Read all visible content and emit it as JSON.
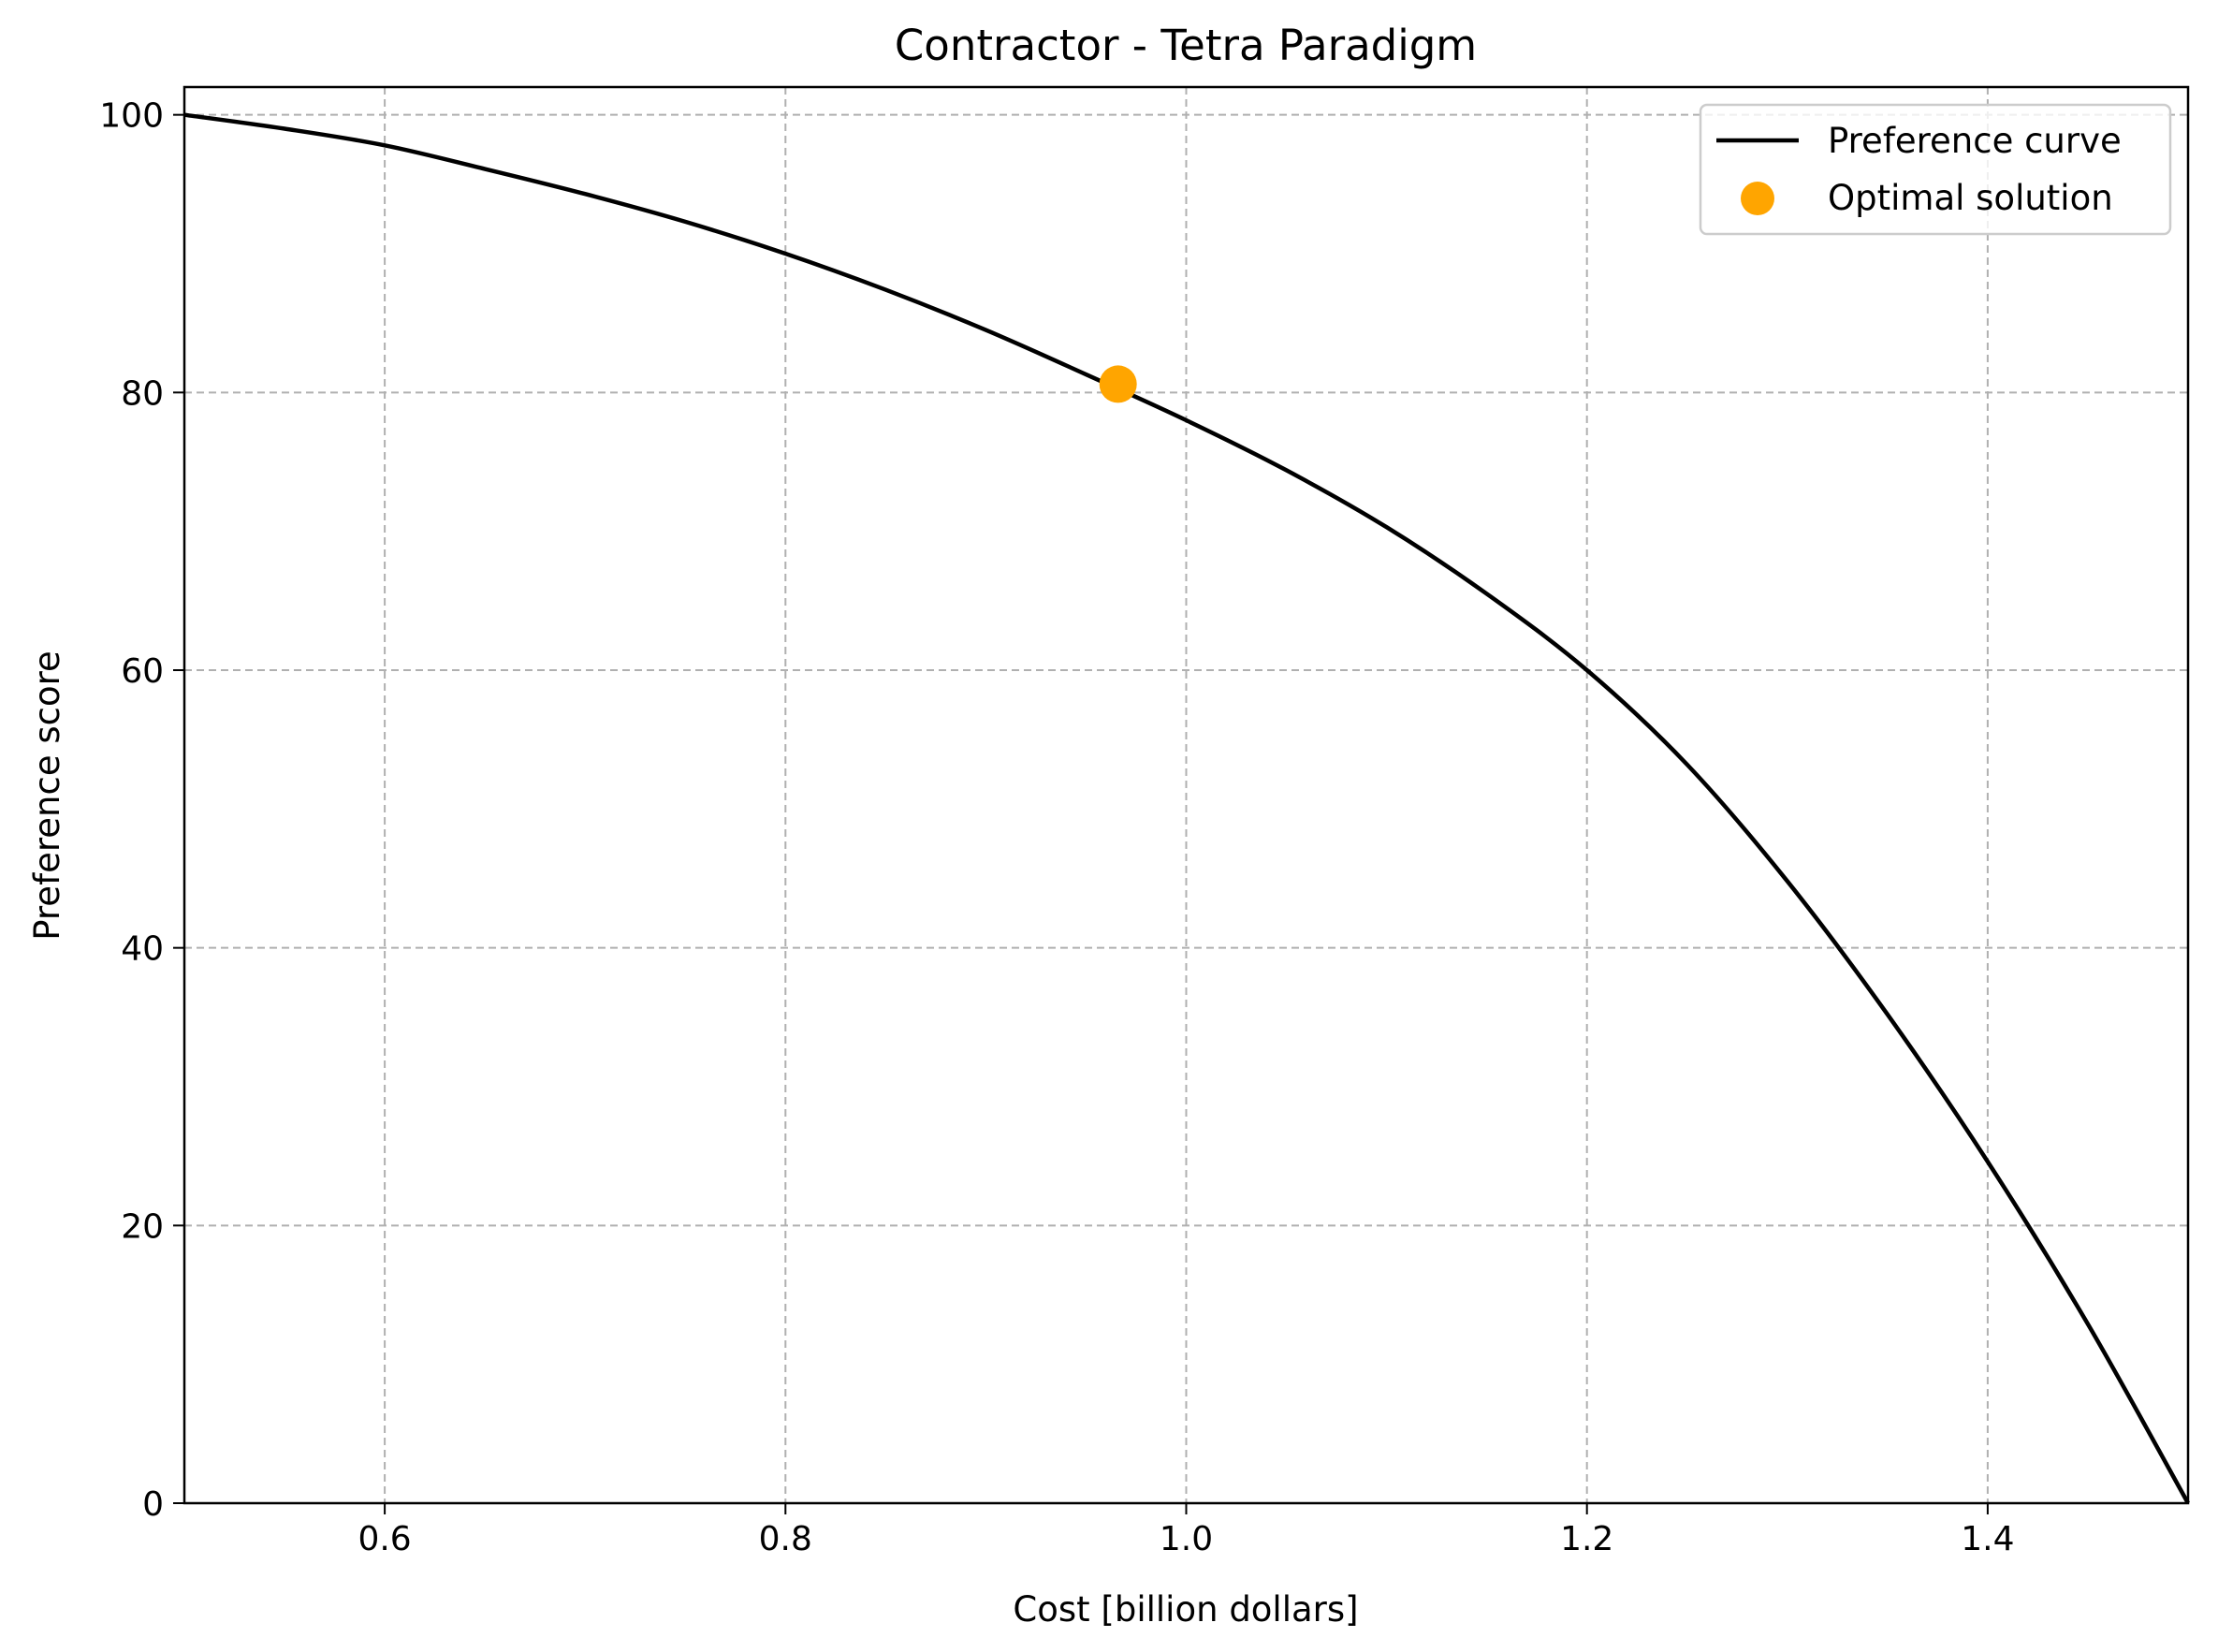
{
  "chart_data": {
    "type": "line",
    "title": "Contractor - Tetra Paradigm",
    "xlabel": "Cost [billion dollars]",
    "ylabel": "Preference score",
    "xlim": [
      0.5,
      1.5
    ],
    "ylim": [
      0,
      102
    ],
    "grid": true,
    "legend_position": "top-right",
    "x_ticks": [
      0.6,
      0.8,
      1.0,
      1.2,
      1.4
    ],
    "x_tick_labels": [
      "0.6",
      "0.8",
      "1.0",
      "1.2",
      "1.4"
    ],
    "y_ticks": [
      0,
      20,
      40,
      60,
      80,
      100
    ],
    "y_tick_labels": [
      "0",
      "20",
      "40",
      "60",
      "80",
      "100"
    ],
    "series": [
      {
        "name": "Preference curve",
        "kind": "line",
        "color": "#000000",
        "x": [
          0.5,
          0.55,
          0.6,
          0.65,
          0.7,
          0.75,
          0.8,
          0.85,
          0.9,
          0.95,
          1.0,
          1.05,
          1.1,
          1.15,
          1.2,
          1.25,
          1.3,
          1.35,
          1.4,
          1.45,
          1.5
        ],
        "y": [
          100,
          99.0,
          97.8,
          96.1,
          94.3,
          92.3,
          90.0,
          87.4,
          84.5,
          81.3,
          78.0,
          74.4,
          70.3,
          65.5,
          60.0,
          53.2,
          44.8,
          35.2,
          24.6,
          12.9,
          0
        ]
      },
      {
        "name": "Optimal solution",
        "kind": "scatter",
        "color": "#ffa500",
        "x": [
          0.966
        ],
        "y": [
          80.6
        ]
      }
    ]
  }
}
